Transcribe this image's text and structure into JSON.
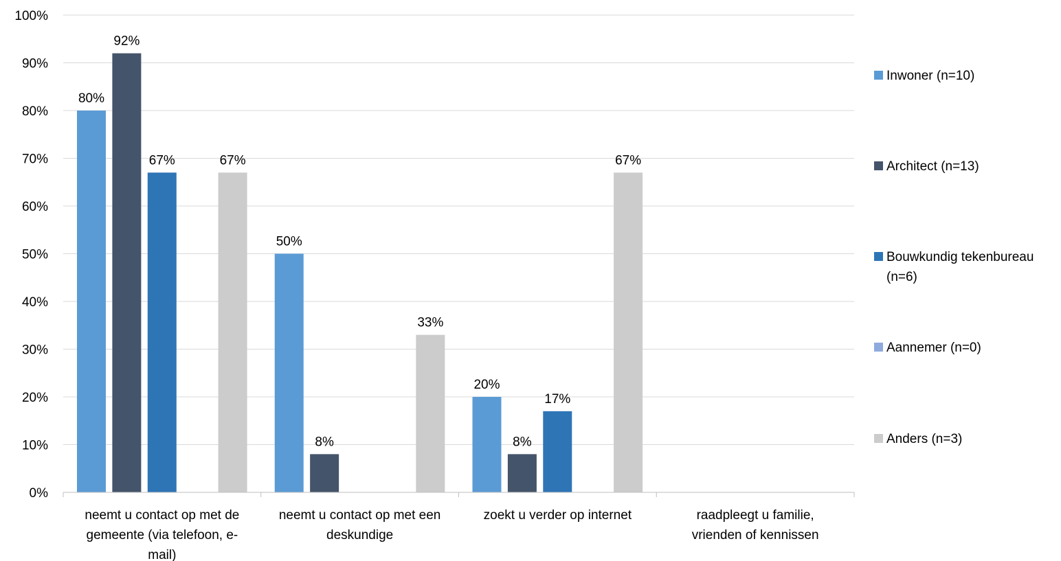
{
  "chart_data": {
    "type": "bar",
    "categories": [
      [
        "neemt u contact op met de",
        "gemeente (via telefoon, e-",
        "mail)"
      ],
      [
        "neemt u contact op met een",
        "deskundige"
      ],
      [
        "zoekt u verder op internet"
      ],
      [
        "raadpleegt u familie,",
        "vrienden of kennissen"
      ]
    ],
    "series": [
      {
        "name": "Inwoner (n=10)",
        "name_lines": [
          "Inwoner (n=10)"
        ],
        "color": "#5b9bd5",
        "values": [
          80,
          50,
          20,
          0
        ],
        "labels": [
          "80%",
          "50%",
          "20%",
          ""
        ]
      },
      {
        "name": "Architect (n=13)",
        "name_lines": [
          "Architect (n=13)"
        ],
        "color": "#44546a",
        "values": [
          92,
          8,
          8,
          0
        ],
        "labels": [
          "92%",
          "8%",
          "8%",
          ""
        ]
      },
      {
        "name": "Bouwkundig tekenbureau (n=6)",
        "name_lines": [
          "Bouwkundig tekenbureau",
          "(n=6)"
        ],
        "color": "#2e75b6",
        "values": [
          67,
          0,
          17,
          0
        ],
        "labels": [
          "67%",
          "",
          "17%",
          ""
        ]
      },
      {
        "name": "Aannemer (n=0)",
        "name_lines": [
          "Aannemer (n=0)"
        ],
        "color": "#8faadc",
        "values": [
          0,
          0,
          0,
          0
        ],
        "labels": [
          "",
          "",
          "",
          ""
        ]
      },
      {
        "name": "Anders (n=3)",
        "name_lines": [
          "Anders (n=3)"
        ],
        "color": "#cccccc",
        "values": [
          67,
          33,
          67,
          0
        ],
        "labels": [
          "67%",
          "33%",
          "67%",
          ""
        ]
      }
    ],
    "y_ticks": [
      "0%",
      "10%",
      "20%",
      "30%",
      "40%",
      "50%",
      "60%",
      "70%",
      "80%",
      "90%",
      "100%"
    ],
    "ylim": [
      0,
      100
    ],
    "grid": true,
    "legend_position": "right"
  }
}
